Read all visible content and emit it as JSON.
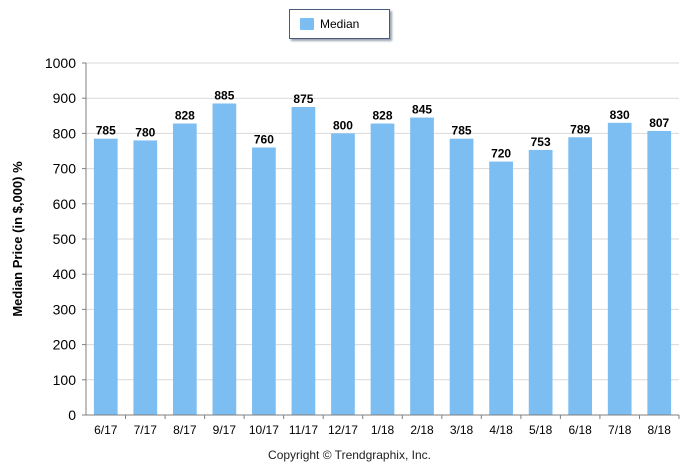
{
  "chart_data": {
    "type": "bar",
    "title": "",
    "xlabel": "",
    "ylabel": "Median Price (in $,000) %",
    "ylim": [
      0,
      1000
    ],
    "y_ticks": [
      0,
      100,
      200,
      300,
      400,
      500,
      600,
      700,
      800,
      900,
      1000
    ],
    "grid": true,
    "legend_position": "top-center",
    "categories": [
      "6/17",
      "7/17",
      "8/17",
      "9/17",
      "10/17",
      "11/17",
      "12/17",
      "1/18",
      "2/18",
      "3/18",
      "4/18",
      "5/18",
      "6/18",
      "7/18",
      "8/18"
    ],
    "series": [
      {
        "name": "Median",
        "color": "#7dbef2",
        "values": [
          785,
          780,
          828,
          885,
          760,
          875,
          800,
          828,
          845,
          785,
          720,
          753,
          789,
          830,
          807
        ]
      }
    ]
  },
  "footer": {
    "copyright": "Copyright © Trendgraphix, Inc."
  }
}
